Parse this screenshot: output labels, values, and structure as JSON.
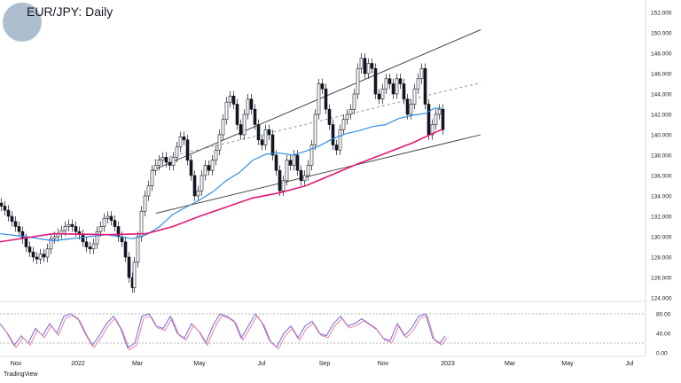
{
  "header": {
    "title": "EUR/JPY: Daily"
  },
  "footer": {
    "brand": "TradingView"
  },
  "colors": {
    "candle": "#131722",
    "ma_short": "#2f8fe6",
    "ma_long": "#e01878",
    "channel": "#333333",
    "channel_mid": "#888888",
    "rsi_line1": "#6b6bd8",
    "rsi_line2": "#e87fa8",
    "band": "#9a9a9a"
  },
  "chart_data": [
    {
      "type": "candlestick",
      "title": "EUR/JPY: Daily",
      "x_ticks": [
        "Nov",
        "2022",
        "Mar",
        "May",
        "Jul",
        "Sep",
        "Nov",
        "2023",
        "Mar",
        "May",
        "Jul"
      ],
      "y_ticks": [
        "152.000",
        "150.000",
        "148.000",
        "146.000",
        "144.000",
        "142.000",
        "140.000",
        "138.000",
        "136.000",
        "134.000",
        "132.000",
        "130.000",
        "128.000",
        "126.000",
        "124.000"
      ],
      "ylim": [
        124,
        152
      ],
      "grid": false,
      "series": [
        {
          "name": "",
          "kind": "price",
          "t": [
            0,
            4,
            8,
            12,
            16,
            20,
            24,
            28,
            32,
            36,
            40,
            44,
            48,
            52,
            56,
            60,
            64,
            68,
            72,
            76,
            80,
            84,
            88,
            92,
            96,
            100,
            104,
            108,
            112,
            116,
            120,
            124,
            128,
            132,
            136,
            140,
            144,
            148,
            150,
            154,
            158,
            162,
            166,
            170,
            174,
            178,
            182,
            186,
            190,
            194,
            198,
            202,
            206,
            210,
            214,
            218,
            222,
            226,
            230,
            234,
            238,
            242,
            246,
            250,
            254,
            258,
            262,
            266,
            270,
            274,
            278,
            282,
            286,
            290,
            294,
            298,
            302,
            306,
            310,
            314,
            318,
            322,
            326,
            330,
            334,
            338,
            342,
            346,
            350,
            354,
            358,
            362,
            366,
            370,
            374,
            378,
            382,
            386,
            390,
            394,
            398,
            402,
            406,
            410,
            414,
            418,
            422,
            426,
            430,
            434,
            438,
            442,
            446,
            450,
            454,
            458,
            462,
            466,
            470,
            474,
            478,
            482,
            486,
            490,
            494,
            498
          ],
          "close": [
            133.0,
            132.6,
            132.0,
            131.5,
            131.0,
            130.5,
            129.8,
            129.0,
            128.5,
            128.0,
            127.8,
            128.3,
            128.0,
            128.8,
            129.8,
            130.0,
            130.3,
            130.6,
            131.0,
            131.2,
            131.0,
            130.5,
            130.2,
            129.5,
            129.0,
            128.8,
            129.3,
            130.5,
            131.0,
            131.8,
            132.0,
            131.6,
            131.0,
            130.0,
            129.5,
            128.0,
            126.0,
            125.0,
            127.5,
            130.0,
            132.5,
            134.0,
            135.0,
            136.5,
            137.0,
            137.5,
            137.8,
            137.3,
            137.0,
            137.8,
            138.8,
            139.8,
            139.5,
            137.5,
            136.0,
            134.0,
            134.5,
            136.0,
            137.0,
            136.5,
            137.5,
            138.5,
            140.0,
            141.5,
            143.2,
            143.8,
            143.0,
            141.0,
            140.0,
            142.0,
            143.5,
            142.5,
            141.0,
            139.5,
            139.0,
            140.5,
            140.0,
            138.0,
            136.5,
            134.5,
            135.5,
            137.5,
            137.0,
            138.0,
            136.5,
            135.5,
            136.0,
            137.0,
            139.0,
            142.0,
            145.0,
            144.5,
            142.5,
            141.0,
            139.0,
            138.5,
            140.5,
            141.5,
            142.0,
            142.5,
            144.0,
            146.5,
            147.5,
            146.0,
            147.0,
            146.5,
            144.0,
            143.5,
            144.5,
            145.5,
            145.0,
            144.0,
            145.5,
            145.0,
            143.5,
            142.0,
            143.0,
            144.5,
            145.5,
            146.5,
            143.0,
            140.0,
            141.0,
            142.0,
            142.5,
            140.5
          ]
        },
        {
          "name": "",
          "kind": "ma_short",
          "t": [
            0,
            30,
            60,
            90,
            120,
            150,
            165,
            180,
            195,
            210,
            225,
            240,
            255,
            270,
            285,
            300,
            315,
            330,
            345,
            360,
            375,
            390,
            405,
            420,
            435,
            450,
            465,
            480,
            490,
            498
          ],
          "values": [
            130.3,
            130.0,
            129.6,
            129.9,
            130.2,
            129.8,
            130.2,
            131.0,
            132.2,
            132.9,
            133.6,
            134.4,
            135.5,
            136.3,
            137.5,
            138.1,
            138.2,
            138.0,
            138.4,
            138.9,
            139.6,
            140.1,
            140.4,
            140.8,
            141.0,
            141.6,
            141.9,
            142.1,
            142.6,
            142.6
          ]
        },
        {
          "name": "",
          "kind": "ma_long",
          "t": [
            0,
            60,
            120,
            165,
            195,
            225,
            255,
            285,
            315,
            345,
            375,
            405,
            435,
            465,
            490,
            498
          ],
          "values": [
            129.5,
            130.3,
            130.2,
            130.3,
            131.0,
            132.0,
            132.9,
            133.8,
            134.3,
            135.0,
            136.1,
            137.2,
            138.2,
            139.2,
            140.2,
            140.5
          ]
        },
        {
          "name": "",
          "kind": "rsi",
          "t": [
            0,
            8,
            16,
            24,
            32,
            40,
            48,
            56,
            64,
            72,
            80,
            88,
            96,
            104,
            112,
            120,
            128,
            136,
            144,
            152,
            160,
            168,
            176,
            184,
            192,
            200,
            208,
            216,
            224,
            232,
            240,
            248,
            256,
            264,
            272,
            280,
            288,
            296,
            304,
            312,
            320,
            328,
            336,
            344,
            352,
            360,
            368,
            376,
            384,
            392,
            400,
            408,
            416,
            424,
            432,
            440,
            448,
            456,
            464,
            472,
            480,
            488,
            496,
            502
          ],
          "values": [
            60,
            40,
            15,
            35,
            20,
            50,
            35,
            60,
            40,
            75,
            80,
            70,
            40,
            15,
            35,
            60,
            75,
            50,
            10,
            20,
            75,
            80,
            55,
            50,
            75,
            40,
            30,
            60,
            45,
            20,
            55,
            80,
            75,
            65,
            30,
            55,
            80,
            60,
            25,
            12,
            40,
            55,
            30,
            55,
            65,
            40,
            35,
            60,
            75,
            55,
            60,
            70,
            60,
            50,
            30,
            25,
            60,
            35,
            50,
            75,
            80,
            30,
            20,
            35
          ]
        }
      ]
    }
  ],
  "rsi_panel": {
    "y_ticks": [
      "80.00",
      "40.00",
      "0.00"
    ],
    "levels": [
      80,
      20
    ]
  }
}
